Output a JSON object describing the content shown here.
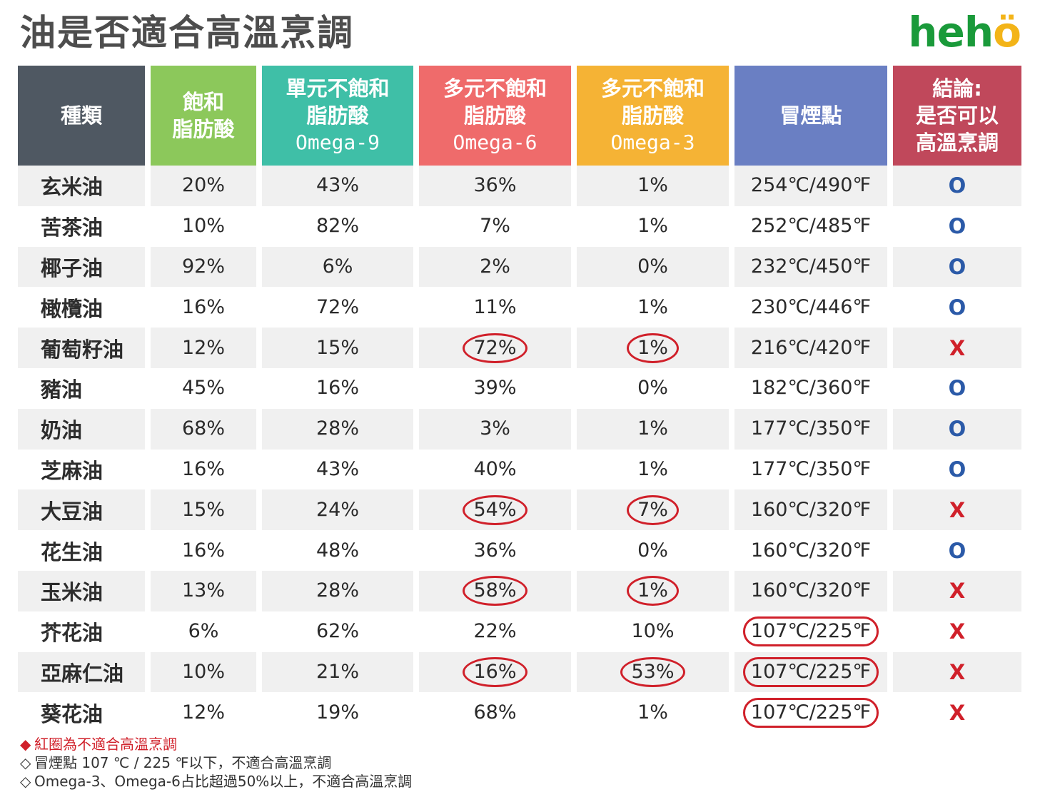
{
  "title": "油是否適合高溫烹調",
  "logo": {
    "main": "heh",
    "accent": "ö"
  },
  "header": {
    "kind": "種類",
    "sat": [
      "飽和",
      "脂肪酸"
    ],
    "mono": [
      "單元不飽和",
      "脂肪酸",
      "Omega-9"
    ],
    "poly6": [
      "多元不飽和",
      "脂肪酸",
      "Omega-6"
    ],
    "poly3": [
      "多元不飽和",
      "脂肪酸",
      "Omega-3"
    ],
    "smoke": "冒煙點",
    "conclusion": [
      "結論:",
      "是否可以",
      "高溫烹調"
    ]
  },
  "colors": {
    "kind": "#4f5862",
    "sat": "#8cc85b",
    "mono": "#3fbfa7",
    "poly6": "#ef6b6b",
    "poly3": "#f5b335",
    "smoke": "#6a7fc3",
    "conclusion": "#c0485b"
  },
  "rows": [
    {
      "name": "玄米油",
      "sat": "20%",
      "mono": "43%",
      "o6": "36%",
      "o3": "1%",
      "smoke": "254℃/490℉",
      "ok": "O",
      "c6": false,
      "c3": false,
      "cs": false
    },
    {
      "name": "苦茶油",
      "sat": "10%",
      "mono": "82%",
      "o6": "7%",
      "o3": "1%",
      "smoke": "252℃/485℉",
      "ok": "O",
      "c6": false,
      "c3": false,
      "cs": false
    },
    {
      "name": "椰子油",
      "sat": "92%",
      "mono": "6%",
      "o6": "2%",
      "o3": "0%",
      "smoke": "232℃/450℉",
      "ok": "O",
      "c6": false,
      "c3": false,
      "cs": false
    },
    {
      "name": "橄欖油",
      "sat": "16%",
      "mono": "72%",
      "o6": "11%",
      "o3": "1%",
      "smoke": "230℃/446℉",
      "ok": "O",
      "c6": false,
      "c3": false,
      "cs": false
    },
    {
      "name": "葡萄籽油",
      "sat": "12%",
      "mono": "15%",
      "o6": "72%",
      "o3": "1%",
      "smoke": "216℃/420℉",
      "ok": "X",
      "c6": true,
      "c3": true,
      "cs": false
    },
    {
      "name": "豬油",
      "sat": "45%",
      "mono": "16%",
      "o6": "39%",
      "o3": "0%",
      "smoke": "182℃/360℉",
      "ok": "O",
      "c6": false,
      "c3": false,
      "cs": false
    },
    {
      "name": "奶油",
      "sat": "68%",
      "mono": "28%",
      "o6": "3%",
      "o3": "1%",
      "smoke": "177℃/350℉",
      "ok": "O",
      "c6": false,
      "c3": false,
      "cs": false
    },
    {
      "name": "芝麻油",
      "sat": "16%",
      "mono": "43%",
      "o6": "40%",
      "o3": "1%",
      "smoke": "177℃/350℉",
      "ok": "O",
      "c6": false,
      "c3": false,
      "cs": false
    },
    {
      "name": "大豆油",
      "sat": "15%",
      "mono": "24%",
      "o6": "54%",
      "o3": "7%",
      "smoke": "160℃/320℉",
      "ok": "X",
      "c6": true,
      "c3": true,
      "cs": false
    },
    {
      "name": "花生油",
      "sat": "16%",
      "mono": "48%",
      "o6": "36%",
      "o3": "0%",
      "smoke": "160℃/320℉",
      "ok": "O",
      "c6": false,
      "c3": false,
      "cs": false
    },
    {
      "name": "玉米油",
      "sat": "13%",
      "mono": "28%",
      "o6": "58%",
      "o3": "1%",
      "smoke": "160℃/320℉",
      "ok": "X",
      "c6": true,
      "c3": true,
      "cs": false
    },
    {
      "name": "芥花油",
      "sat": "6%",
      "mono": "62%",
      "o6": "22%",
      "o3": "10%",
      "smoke": "107℃/225℉",
      "ok": "X",
      "c6": false,
      "c3": false,
      "cs": true
    },
    {
      "name": "亞麻仁油",
      "sat": "10%",
      "mono": "21%",
      "o6": "16%",
      "o3": "53%",
      "smoke": "107℃/225℉",
      "ok": "X",
      "c6": true,
      "c3": true,
      "cs": true
    },
    {
      "name": "葵花油",
      "sat": "12%",
      "mono": "19%",
      "o6": "68%",
      "o3": "1%",
      "smoke": "107℃/225℉",
      "ok": "X",
      "c6": false,
      "c3": false,
      "cs": true
    }
  ],
  "notes": [
    {
      "bullet": "◆",
      "text": "紅圈為不適合高溫烹調",
      "red": true
    },
    {
      "bullet": "◇",
      "text": "冒煙點 107 ℃ / 225 ℉以下，不適合高溫烹調",
      "red": false
    },
    {
      "bullet": "◇",
      "text": "Omega-3、Omega-6占比超過50%以上，不適合高溫烹調",
      "red": false
    }
  ]
}
